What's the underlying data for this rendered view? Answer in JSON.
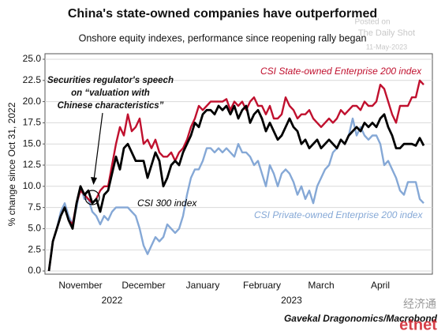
{
  "chart_data": {
    "type": "line",
    "title": "China's state-owned companies have outperformed",
    "subtitle": "Onshore equity indexes, performance since reopening rally began",
    "y_label": "% change since Oct 31, 2022",
    "source": "Gavekal Dragonomics/Macrobond",
    "watermark": [
      "Posted on",
      "The Daily Shot",
      "11-May-2023"
    ],
    "logo": [
      "经济通",
      "etnet"
    ],
    "annotation": [
      "Securities regulator's speech",
      "on “valuation with",
      "Chinese characteristics”"
    ],
    "x_group_labels": [
      "2022",
      "2023"
    ],
    "categories": [
      null,
      null,
      null,
      null,
      null,
      null,
      null,
      null,
      "November",
      null,
      null,
      null,
      null,
      null,
      null,
      null,
      null,
      null,
      null,
      null,
      null,
      null,
      null,
      null,
      "December",
      null,
      null,
      null,
      null,
      null,
      null,
      null,
      null,
      null,
      null,
      null,
      null,
      null,
      null,
      "January",
      null,
      null,
      null,
      null,
      null,
      null,
      null,
      null,
      null,
      null,
      null,
      null,
      null,
      null,
      "February",
      null,
      null,
      null,
      null,
      null,
      null,
      null,
      null,
      null,
      null,
      null,
      null,
      null,
      null,
      "March",
      null,
      null,
      null,
      null,
      null,
      null,
      null,
      null,
      null,
      null,
      null,
      null,
      null,
      null,
      "April",
      null,
      null,
      null,
      null,
      null,
      null,
      null,
      null,
      null,
      null,
      null
    ],
    "series": [
      {
        "name": "CSI State-owned Enterprise 200 index",
        "color": "#c0102e",
        "values": [
          0,
          3.5,
          5,
          6.5,
          7.5,
          6,
          5.5,
          8,
          9.5,
          9,
          8.5,
          8,
          8.5,
          9.5,
          10,
          10,
          12.5,
          15,
          17,
          16,
          18.5,
          16.5,
          17,
          18,
          15,
          15.5,
          14.5,
          15.5,
          14,
          13.5,
          13.5,
          14,
          13,
          14,
          14.5,
          15.5,
          17,
          18,
          19.5,
          19,
          19.5,
          20,
          20,
          20,
          20,
          20.3,
          19,
          20,
          19.5,
          20,
          19,
          20,
          20.5,
          19.5,
          19.5,
          18.5,
          19.5,
          18,
          18,
          18.5,
          20.5,
          19.5,
          19,
          18,
          18.5,
          18.5,
          19,
          18,
          17.5,
          17,
          17.5,
          18,
          17.5,
          18,
          19,
          18.5,
          19,
          19.5,
          19.5,
          19,
          20,
          19.5,
          19.5,
          20,
          22,
          21.5,
          20,
          18.5,
          17.5,
          19.5,
          19.5,
          19.5,
          20.5,
          20.5,
          22.5,
          22
        ]
      },
      {
        "name": "CSI 300 index",
        "color": "#000000",
        "values": [
          0,
          3.5,
          5,
          6.5,
          7.5,
          6,
          5,
          8,
          10,
          9,
          9.5,
          8,
          8.5,
          7,
          9,
          9.5,
          11.5,
          13.5,
          12,
          14.5,
          15,
          14,
          13,
          13,
          13,
          11,
          12.5,
          14,
          13,
          10,
          11,
          12.5,
          13,
          12.5,
          14,
          15,
          16,
          17.5,
          17,
          18.5,
          19,
          19,
          18.5,
          19.5,
          19,
          19.5,
          18.5,
          19.5,
          18,
          19,
          19.5,
          17.5,
          18.5,
          19,
          18,
          16.5,
          17.5,
          16.5,
          15.5,
          16,
          17,
          18,
          17,
          16.5,
          15,
          15.5,
          14.5,
          15,
          15.5,
          14.5,
          15,
          15.5,
          15,
          14.5,
          15.5,
          15,
          16,
          16.5,
          17,
          16.5,
          17.5,
          17,
          17.5,
          17,
          18,
          18.5,
          17,
          16,
          14.5,
          14.5,
          15,
          15,
          15,
          14.8,
          15.7,
          14.8
        ]
      },
      {
        "name": "CSI Private-owned Enterprise 200 index",
        "color": "#85a8d6",
        "values": [
          0,
          3.5,
          5,
          7,
          8,
          6.5,
          5.5,
          7.5,
          10,
          8.5,
          8.5,
          7,
          6.5,
          5.5,
          6.5,
          6,
          7,
          7.5,
          7.5,
          7.5,
          7.5,
          7,
          6.5,
          5,
          3,
          2,
          3,
          4,
          3.5,
          4,
          5.5,
          5,
          4.5,
          5,
          6.5,
          9,
          11,
          12,
          12,
          13,
          14.5,
          14.5,
          14,
          14.5,
          14,
          14.5,
          14,
          13.5,
          15,
          14,
          14,
          13.5,
          12.5,
          13,
          11.5,
          10,
          12.5,
          11.5,
          10,
          11.5,
          12,
          11.5,
          10.5,
          9,
          10,
          8.5,
          9.5,
          8,
          10,
          11,
          12,
          12.5,
          14,
          14.5,
          15.5,
          15,
          16,
          18,
          16,
          17,
          16,
          15.5,
          16,
          16,
          15,
          12.5,
          13,
          12,
          11,
          9.5,
          9,
          10.5,
          10.5,
          10.5,
          8.5,
          8
        ]
      }
    ],
    "ylim": [
      0,
      25
    ],
    "yticks": [
      {
        "value": 0,
        "label": "0.0"
      },
      {
        "value": 2.5,
        "label": "2.5"
      },
      {
        "value": 5,
        "label": "5.0"
      },
      {
        "value": 7.5,
        "label": "7.5"
      },
      {
        "value": 10,
        "label": "10.0"
      },
      {
        "value": 12.5,
        "label": "12.5"
      },
      {
        "value": 15,
        "label": "15.0"
      },
      {
        "value": 17.5,
        "label": "17.5"
      },
      {
        "value": 20,
        "label": "20.0"
      },
      {
        "value": 22.5,
        "label": "22.5"
      },
      {
        "value": 25,
        "label": "25.0"
      }
    ],
    "grid": true
  }
}
